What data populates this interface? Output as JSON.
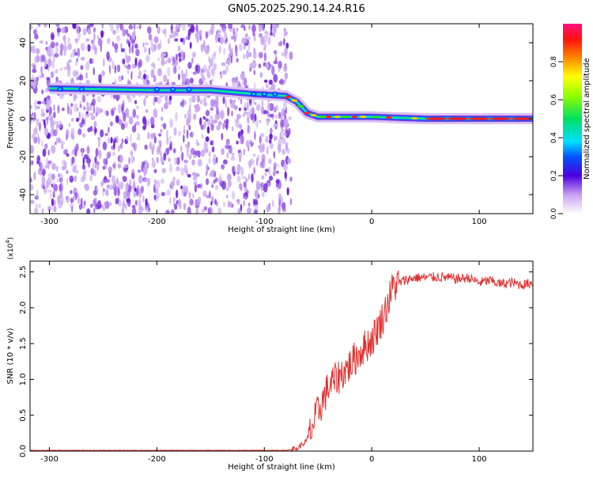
{
  "title": "GN05.2025.290.14.24.R16",
  "colors": {
    "axis": "#000000",
    "line": "#e03030",
    "scatter_purple": "#6a1fd6",
    "scatter_light": "#c9a8f0"
  },
  "colorbar": {
    "label": "Normalized spectral amplitude",
    "ticks": [
      "0.0",
      "0.2",
      "0.4",
      "0.6",
      "0.8"
    ],
    "tick_values": [
      0.0,
      0.2,
      0.4,
      0.6,
      0.8
    ],
    "range": [
      0,
      1
    ]
  },
  "chart_data": [
    {
      "type": "heatmap",
      "ylabel": "Frequency (Hz)",
      "xlabel": "Height of straight line (km)",
      "xlim": [
        -318,
        150
      ],
      "ylim": [
        -50,
        50
      ],
      "xticks": [
        -300,
        -200,
        -100,
        0,
        100
      ],
      "xtick_labels": [
        "-300",
        "-200",
        "-100",
        "0",
        "100"
      ],
      "yticks": [
        -40,
        -20,
        0,
        20,
        40
      ],
      "ytick_labels": [
        "-40",
        "-20",
        "0",
        "20",
        "40"
      ],
      "noise_region_x": [
        -318,
        -75
      ],
      "ridge": [
        {
          "x": -300,
          "y": 16
        },
        {
          "x": -200,
          "y": 15
        },
        {
          "x": -150,
          "y": 15
        },
        {
          "x": -110,
          "y": 13
        },
        {
          "x": -80,
          "y": 12
        },
        {
          "x": -70,
          "y": 9
        },
        {
          "x": -60,
          "y": 3
        },
        {
          "x": -50,
          "y": 1
        },
        {
          "x": -40,
          "y": 1
        },
        {
          "x": 0,
          "y": 1
        },
        {
          "x": 50,
          "y": 0
        },
        {
          "x": 150,
          "y": 0
        }
      ]
    },
    {
      "type": "line",
      "ylabel": "SNR (10 * v/v)",
      "xlabel": "Height of straight line (km)",
      "yunit": "(x10",
      "yunit_exp": "4",
      "yunit_close": ")",
      "xlim": [
        -318,
        150
      ],
      "ylim": [
        0,
        2.65
      ],
      "xticks": [
        -300,
        -200,
        -100,
        0,
        100
      ],
      "xtick_labels": [
        "-300",
        "-200",
        "-100",
        "0",
        "100"
      ],
      "yticks": [
        0.0,
        0.5,
        1.0,
        1.5,
        2.0,
        2.5
      ],
      "ytick_labels": [
        "0.0",
        "0.5",
        "1.0",
        "1.5",
        "2.0",
        "2.5"
      ],
      "series": [
        {
          "x": [
            -318,
            -200,
            -100,
            -80,
            -70,
            -60,
            -50,
            -40,
            -30,
            -20,
            -10,
            0,
            10,
            20,
            30,
            40,
            50,
            60,
            70,
            80,
            90,
            100,
            110,
            120,
            130,
            140,
            150
          ],
          "y": [
            0.01,
            0.01,
            0.01,
            0.01,
            0.03,
            0.15,
            0.55,
            0.9,
            1.05,
            1.2,
            1.4,
            1.55,
            1.85,
            2.3,
            2.38,
            2.42,
            2.42,
            2.43,
            2.42,
            2.4,
            2.42,
            2.35,
            2.38,
            2.33,
            2.35,
            2.32,
            2.35
          ]
        }
      ]
    }
  ]
}
